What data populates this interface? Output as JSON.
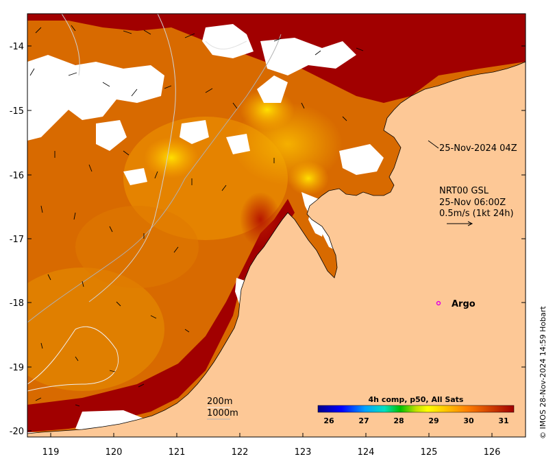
{
  "map": {
    "x_ticks": [
      "119",
      "120",
      "121",
      "122",
      "123",
      "124",
      "125",
      "126"
    ],
    "y_ticks": [
      "-14",
      "-15",
      "-16",
      "-17",
      "-18",
      "-19",
      "-20"
    ],
    "land_color": "#FDC896",
    "no_data_color": "#FFFFFF",
    "hot_color": "#A10000"
  },
  "annotations": {
    "sst_time": "25-Nov-2024 04Z",
    "current_source": "NRT00 GSL",
    "current_time": "25-Nov 06:00Z",
    "current_scale": "0.5m/s (1kt 24h)",
    "argo_label": "Argo",
    "contour_200": "200m",
    "contour_1000": "1000m"
  },
  "colorbar": {
    "title": "4h comp, p50, All Sats",
    "ticks": [
      "26",
      "27",
      "28",
      "29",
      "30",
      "31"
    ],
    "min": 25.6,
    "max": 31.3,
    "colors": [
      "#00008B",
      "#0000FF",
      "#00A0FF",
      "#00E0C0",
      "#00C000",
      "#C0E000",
      "#FFFF00",
      "#FFC000",
      "#FF8000",
      "#D04000",
      "#A10000"
    ]
  },
  "credit": "© IMOS 28-Nov-2024 14:59 Hobart"
}
